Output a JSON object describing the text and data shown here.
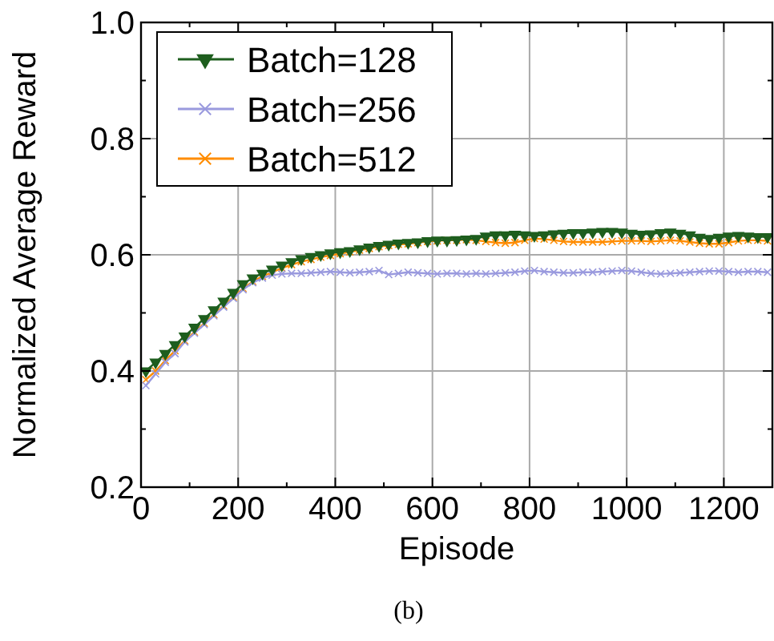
{
  "chart_data": {
    "type": "line",
    "xlabel": "Episode",
    "ylabel": "Normalized Average Reward",
    "annotations": [
      "(b)"
    ],
    "x": [
      10,
      30,
      50,
      70,
      90,
      110,
      130,
      150,
      170,
      190,
      210,
      230,
      250,
      270,
      290,
      310,
      330,
      350,
      370,
      390,
      410,
      430,
      450,
      470,
      490,
      510,
      530,
      550,
      570,
      590,
      610,
      630,
      650,
      670,
      690,
      710,
      730,
      750,
      770,
      790,
      810,
      830,
      850,
      870,
      890,
      910,
      930,
      950,
      970,
      990,
      1010,
      1030,
      1050,
      1070,
      1090,
      1110,
      1130,
      1150,
      1170,
      1190,
      1210,
      1230,
      1250,
      1270,
      1290
    ],
    "series": [
      {
        "name": "Batch=128",
        "color": "#1e5e1e",
        "marker": "triangle",
        "values": [
          0.4,
          0.415,
          0.43,
          0.445,
          0.46,
          0.475,
          0.49,
          0.505,
          0.52,
          0.535,
          0.55,
          0.56,
          0.568,
          0.575,
          0.582,
          0.588,
          0.593,
          0.597,
          0.6,
          0.603,
          0.605,
          0.607,
          0.61,
          0.613,
          0.616,
          0.618,
          0.62,
          0.621,
          0.622,
          0.624,
          0.625,
          0.625,
          0.626,
          0.627,
          0.628,
          0.632,
          0.634,
          0.634,
          0.635,
          0.634,
          0.633,
          0.634,
          0.636,
          0.637,
          0.638,
          0.638,
          0.639,
          0.64,
          0.64,
          0.639,
          0.637,
          0.635,
          0.636,
          0.638,
          0.639,
          0.637,
          0.634,
          0.63,
          0.628,
          0.63,
          0.632,
          0.633,
          0.632,
          0.631,
          0.631
        ]
      },
      {
        "name": "Batch=256",
        "color": "#9a9ade",
        "marker": "cross",
        "values": [
          0.375,
          0.395,
          0.415,
          0.43,
          0.45,
          0.465,
          0.48,
          0.495,
          0.51,
          0.525,
          0.54,
          0.552,
          0.56,
          0.565,
          0.567,
          0.568,
          0.568,
          0.569,
          0.57,
          0.571,
          0.57,
          0.569,
          0.57,
          0.571,
          0.573,
          0.566,
          0.568,
          0.57,
          0.569,
          0.568,
          0.567,
          0.568,
          0.568,
          0.567,
          0.568,
          0.567,
          0.568,
          0.569,
          0.57,
          0.572,
          0.573,
          0.571,
          0.57,
          0.569,
          0.569,
          0.57,
          0.57,
          0.571,
          0.572,
          0.573,
          0.572,
          0.57,
          0.568,
          0.567,
          0.568,
          0.569,
          0.57,
          0.571,
          0.572,
          0.572,
          0.571,
          0.57,
          0.571,
          0.571,
          0.57
        ]
      },
      {
        "name": "Batch=512",
        "color": "#ff8c00",
        "marker": "cross",
        "values": [
          0.385,
          0.4,
          0.418,
          0.435,
          0.452,
          0.467,
          0.482,
          0.497,
          0.512,
          0.527,
          0.542,
          0.554,
          0.563,
          0.57,
          0.577,
          0.583,
          0.588,
          0.592,
          0.596,
          0.599,
          0.602,
          0.605,
          0.608,
          0.611,
          0.614,
          0.616,
          0.618,
          0.619,
          0.621,
          0.623,
          0.624,
          0.625,
          0.625,
          0.626,
          0.625,
          0.623,
          0.621,
          0.62,
          0.621,
          0.625,
          0.628,
          0.627,
          0.625,
          0.623,
          0.622,
          0.622,
          0.622,
          0.622,
          0.623,
          0.624,
          0.624,
          0.624,
          0.623,
          0.624,
          0.625,
          0.624,
          0.622,
          0.62,
          0.619,
          0.619,
          0.621,
          0.624,
          0.625,
          0.625,
          0.624
        ]
      }
    ],
    "xlim": [
      0,
      1300
    ],
    "xticks": [
      0,
      {
        "value": 100,
        "label": null
      },
      200,
      {
        "value": 300,
        "label": null
      },
      400,
      {
        "value": 500,
        "label": null
      },
      600,
      {
        "value": 700,
        "label": null
      },
      800,
      {
        "value": 900,
        "label": null
      },
      1000,
      {
        "value": 1100,
        "label": null
      },
      1200
    ],
    "ylim": [
      0.2,
      1.0
    ],
    "yticks": [
      0.2,
      {
        "value": 0.3,
        "label": null
      },
      0.4,
      {
        "value": 0.5,
        "label": null
      },
      0.6,
      {
        "value": 0.7,
        "label": null
      },
      0.8,
      {
        "value": 0.9,
        "label": null
      },
      {
        "value": 1,
        "label": "1.0"
      }
    ],
    "grid": true,
    "legend": "top left",
    "line_style": "solid"
  }
}
